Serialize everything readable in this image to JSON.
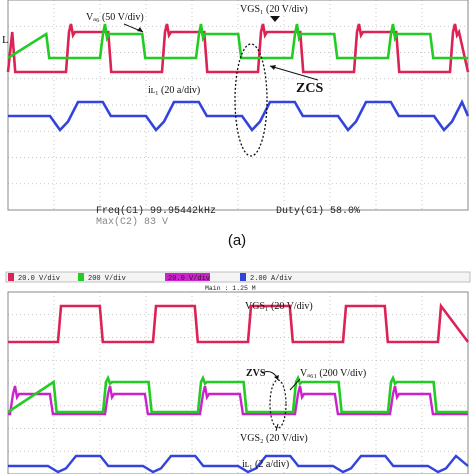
{
  "panel_a": {
    "labels": {
      "vds": "Vₐ₆ (50 V/div)",
      "vgs": "VGS₁ (20 V/div)",
      "il": "iʟ₁ (20 a/div)",
      "zcs": "ZCS",
      "marker": "L",
      "freq": "Freq(C1)   99.95442kHz",
      "duty": "Duty(C1)   58.0%",
      "cut_line": "Max(C2)   83 V"
    },
    "colors": {
      "vds": "#dd2255",
      "vgs": "#22cc22",
      "il": "#3344dd"
    }
  },
  "caption_a": "(a)",
  "panel_b": {
    "header": {
      "ch1": "20.0 V/div",
      "ch2": "200 V/div",
      "ch3": "20.0 V/div",
      "ch4": "2.00 A/div",
      "timebase": "Main : 1.25 M"
    },
    "labels": {
      "vgs1": "VGS₁ (20 V/div)",
      "zvs": "ZVS",
      "vds1": "Vₐ₆₁ (200 V/div)",
      "vgs2": "VGS₂ (20 V/div)",
      "il": "iʟ₁ (2 a/div)"
    },
    "colors": {
      "ch1": "#dd2255",
      "ch2": "#22cc22",
      "ch3": "#cc22cc",
      "ch4": "#3344dd"
    }
  },
  "chart_data": [
    {
      "type": "line",
      "title": "",
      "xlabel": "",
      "ylabel": "",
      "grid": true,
      "switching_frequency_kHz": 99.95442,
      "duty_percent": 58.0,
      "series": [
        {
          "name": "Vds (50 V/div)",
          "waveform": "square",
          "high_div": 2.9,
          "low_div": 2.3
        },
        {
          "name": "VGS1 (20 V/div)",
          "waveform": "square",
          "high_div": 2.5,
          "low_div": 2.0
        },
        {
          "name": "iL1 (20 a/div)",
          "waveform": "trapezoid",
          "high_div": 0.5,
          "low_div": -0.3
        }
      ],
      "annotations": [
        "ZCS"
      ]
    },
    {
      "type": "line",
      "title": "",
      "grid": true,
      "series": [
        {
          "name": "VGS1 (20 V/div)",
          "waveform": "square"
        },
        {
          "name": "Vds1 (200 V/div)",
          "waveform": "square"
        },
        {
          "name": "VGS2 (20 V/div)",
          "waveform": "square"
        },
        {
          "name": "iL1 (2 a/div)",
          "waveform": "trapezoid"
        }
      ],
      "annotations": [
        "ZVS"
      ]
    }
  ]
}
